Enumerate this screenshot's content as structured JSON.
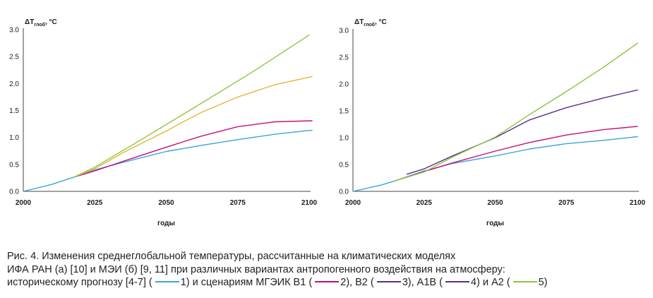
{
  "chart_data": [
    {
      "type": "line",
      "ylabel_main": "ΔT",
      "ylabel_sub": "глоб",
      "ylabel_unit": ", °C",
      "xlabel": "годы",
      "xlim": [
        2000,
        2100
      ],
      "ylim": [
        0,
        3.0
      ],
      "x_ticks": [
        "2000",
        "2025",
        "2050",
        "2075",
        "2100"
      ],
      "y_ticks": [
        "0.0",
        "0.5",
        "1.0",
        "1.5",
        "2.0",
        "2.5",
        "3.0"
      ],
      "series": [
        {
          "color": "#3aa3dc",
          "points": [
            [
              2000,
              0.0
            ],
            [
              2010,
              0.13
            ],
            [
              2018,
              0.27
            ],
            [
              2025,
              0.4
            ],
            [
              2035,
              0.54
            ],
            [
              2050,
              0.74
            ],
            [
              2062,
              0.85
            ],
            [
              2075,
              0.96
            ],
            [
              2088,
              1.06
            ],
            [
              2100,
              1.13
            ],
            [
              2101,
              1.13
            ]
          ]
        },
        {
          "color": "#c4107a",
          "points": [
            [
              2018,
              0.27
            ],
            [
              2025,
              0.38
            ],
            [
              2035,
              0.56
            ],
            [
              2050,
              0.82
            ],
            [
              2062,
              1.02
            ],
            [
              2075,
              1.2
            ],
            [
              2088,
              1.29
            ],
            [
              2101,
              1.31
            ]
          ]
        },
        {
          "color": "#e8b33a",
          "points": [
            [
              2018,
              0.27
            ],
            [
              2025,
              0.42
            ],
            [
              2035,
              0.72
            ],
            [
              2050,
              1.12
            ],
            [
              2062,
              1.46
            ],
            [
              2075,
              1.75
            ],
            [
              2088,
              1.98
            ],
            [
              2101,
              2.13
            ]
          ]
        },
        {
          "color": "#8cc63f",
          "points": [
            [
              2018,
              0.27
            ],
            [
              2025,
              0.45
            ],
            [
              2040,
              0.92
            ],
            [
              2060,
              1.56
            ],
            [
              2080,
              2.21
            ],
            [
              2100,
              2.9
            ]
          ]
        }
      ]
    },
    {
      "type": "line",
      "ylabel_main": "ΔT",
      "ylabel_sub": "глоб",
      "ylabel_unit": ", °C",
      "xlabel": "годы",
      "xlim": [
        2000,
        2100
      ],
      "ylim": [
        0,
        3.0
      ],
      "x_ticks": [
        "2000",
        "2025",
        "2050",
        "2075",
        "2100"
      ],
      "y_ticks": [
        "0.0",
        "0.5",
        "1.0",
        "1.5",
        "2.0",
        "2.5",
        "3.0"
      ],
      "series": [
        {
          "color": "#3aa3dc",
          "points": [
            [
              2000,
              0.0
            ],
            [
              2010,
              0.12
            ],
            [
              2015,
              0.2
            ],
            [
              2025,
              0.38
            ],
            [
              2035,
              0.52
            ],
            [
              2050,
              0.66
            ],
            [
              2062,
              0.79
            ],
            [
              2075,
              0.89
            ],
            [
              2088,
              0.95
            ],
            [
              2100,
              1.02
            ]
          ]
        },
        {
          "color": "#c4107a",
          "points": [
            [
              2015,
              0.2
            ],
            [
              2025,
              0.37
            ],
            [
              2035,
              0.53
            ],
            [
              2050,
              0.75
            ],
            [
              2062,
              0.91
            ],
            [
              2075,
              1.05
            ],
            [
              2088,
              1.15
            ],
            [
              2100,
              1.21
            ]
          ]
        },
        {
          "color": "#5b2d8e",
          "points": [
            [
              2019,
              0.32
            ],
            [
              2025,
              0.42
            ],
            [
              2035,
              0.66
            ],
            [
              2050,
              1.0
            ],
            [
              2062,
              1.33
            ],
            [
              2075,
              1.56
            ],
            [
              2088,
              1.74
            ],
            [
              2100,
              1.89
            ]
          ]
        },
        {
          "color": "#8cc63f",
          "points": [
            [
              2015,
              0.2
            ],
            [
              2025,
              0.36
            ],
            [
              2035,
              0.64
            ],
            [
              2050,
              1.01
            ],
            [
              2062,
              1.43
            ],
            [
              2075,
              1.86
            ],
            [
              2088,
              2.31
            ],
            [
              2100,
              2.76
            ]
          ]
        }
      ]
    }
  ],
  "caption": {
    "line1": "Рис. 4. Изменения среднеглобальной температуры, рассчитанные на климатических моделях",
    "line2": "ИФА РАН (а) [10] и МЭИ (б) [9, 11] при различных вариантах антропогенного воздействия на атмосферу:",
    "l3_s1": "историческому прогнозу [4-7] (",
    "l3_s2": "1) и сценариям МГЭИК В1 (",
    "l3_s3": "2), В2 (",
    "l3_s4": "3), А1В (",
    "l3_s5": "4) и А2 (",
    "l3_s6": "5)",
    "colors": [
      "#3aa3dc",
      "#c4107a",
      "#5b2d8e",
      "#5b2d8e",
      "#8cc63f"
    ]
  }
}
